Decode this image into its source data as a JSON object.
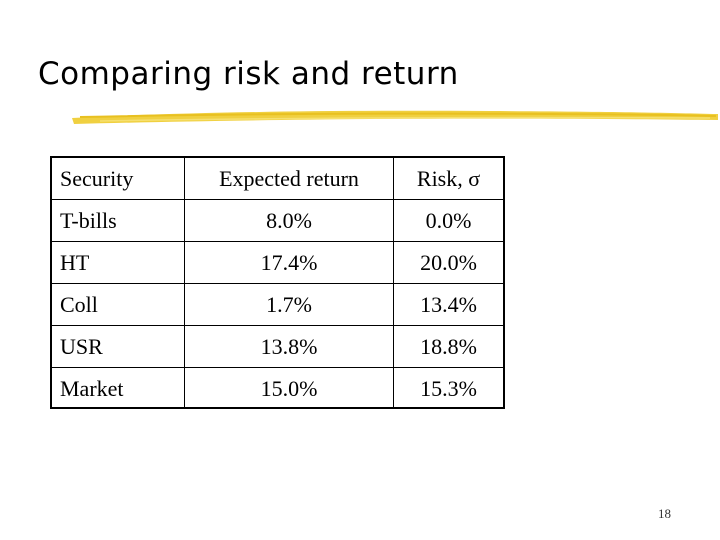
{
  "slide": {
    "title": "Comparing risk and return",
    "page_number": "18",
    "accent_color": "#f0d040"
  },
  "table": {
    "headers": [
      "Security",
      "Expected return",
      "Risk, σ"
    ],
    "rows": [
      [
        "T-bills",
        "8.0%",
        "0.0%"
      ],
      [
        "HT",
        "17.4%",
        "20.0%"
      ],
      [
        "Coll",
        "1.7%",
        "13.4%"
      ],
      [
        "USR",
        "13.8%",
        "18.8%"
      ],
      [
        "Market",
        "15.0%",
        "15.3%"
      ]
    ]
  }
}
